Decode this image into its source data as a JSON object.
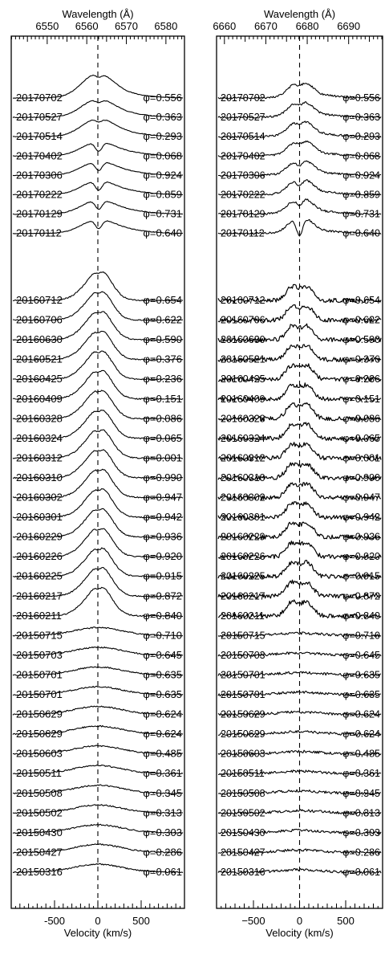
{
  "figure": {
    "phi_symbol": "φ",
    "colors": {
      "ink": "#000000",
      "background": "#ffffff"
    }
  },
  "chart_data": [
    {
      "type": "line",
      "title": "",
      "top_axis_label": "Wavelength (Å)",
      "top_ticks": [
        "6550",
        "6560",
        "6570",
        "6580"
      ],
      "top_tick_values": [
        6550,
        6560,
        6570,
        6580
      ],
      "rest_wavelength": 6562.8,
      "xlabel": "Velocity (km/s)",
      "bottom_ticks": [
        "-500",
        "0",
        "500"
      ],
      "bottom_tick_values": [
        -500,
        0,
        500
      ],
      "xlim": [
        -1000,
        1000
      ],
      "zero_line_dashed": true,
      "group1": [
        {
          "date": "20170702",
          "phase": "0.556"
        },
        {
          "date": "20170527",
          "phase": "0.363"
        },
        {
          "date": "20170514",
          "phase": "0.293"
        },
        {
          "date": "20170402",
          "phase": "0.068"
        },
        {
          "date": "20170306",
          "phase": "0.924"
        },
        {
          "date": "20170222",
          "phase": "0.859"
        },
        {
          "date": "20170129",
          "phase": "0.731"
        },
        {
          "date": "20170112",
          "phase": "0.640"
        }
      ],
      "group2": [
        {
          "date": "20160712",
          "phase": "0.654"
        },
        {
          "date": "20160706",
          "phase": "0.622"
        },
        {
          "date": "20160630",
          "phase": "0.590"
        },
        {
          "date": "20160521",
          "phase": "0.376"
        },
        {
          "date": "20160425",
          "phase": "0.236"
        },
        {
          "date": "20160409",
          "phase": "0.151"
        },
        {
          "date": "20160328",
          "phase": "0.086"
        },
        {
          "date": "20160324",
          "phase": "0.065"
        },
        {
          "date": "20160312",
          "phase": "0.001"
        },
        {
          "date": "20160310",
          "phase": "0.990"
        },
        {
          "date": "20160302",
          "phase": "0.947"
        },
        {
          "date": "20160301",
          "phase": "0.942"
        },
        {
          "date": "20160229",
          "phase": "0.936"
        },
        {
          "date": "20160226",
          "phase": "0.920"
        },
        {
          "date": "20160225",
          "phase": "0.915"
        },
        {
          "date": "20160217",
          "phase": "0.872"
        },
        {
          "date": "20160211",
          "phase": "0.840"
        },
        {
          "date": "20150715",
          "phase": "0.710"
        },
        {
          "date": "20150703",
          "phase": "0.645"
        },
        {
          "date": "20150701",
          "phase": "0.635"
        },
        {
          "date": "20150701",
          "phase": "0.635"
        },
        {
          "date": "20150629",
          "phase": "0.624"
        },
        {
          "date": "20150629",
          "phase": "0.624"
        },
        {
          "date": "20150603",
          "phase": "0.485"
        },
        {
          "date": "20150511",
          "phase": "0.361"
        },
        {
          "date": "20150508",
          "phase": "0.345"
        },
        {
          "date": "20150502",
          "phase": "0.313"
        },
        {
          "date": "20150430",
          "phase": "0.303"
        },
        {
          "date": "20150427",
          "phase": "0.286"
        },
        {
          "date": "20150316",
          "phase": "0.061"
        }
      ]
    },
    {
      "type": "line",
      "title": "",
      "top_axis_label": "Wavelength (Å)",
      "top_ticks": [
        "6660",
        "6670",
        "6680",
        "6690"
      ],
      "top_tick_values": [
        6660,
        6670,
        6680,
        6690
      ],
      "rest_wavelength": 6678.15,
      "xlabel": "Velocity (km/s)",
      "bottom_ticks": [
        "−500",
        "0",
        "500"
      ],
      "bottom_tick_values": [
        -500,
        0,
        500
      ],
      "xlim": [
        -900,
        900
      ],
      "zero_line_dashed": true,
      "group1": [
        {
          "date": "20170702",
          "phase": "0.556"
        },
        {
          "date": "20170527",
          "phase": "0.363"
        },
        {
          "date": "20170514",
          "phase": "0.293"
        },
        {
          "date": "20170402",
          "phase": "0.068"
        },
        {
          "date": "20170306",
          "phase": "0.924"
        },
        {
          "date": "20170222",
          "phase": "0.859"
        },
        {
          "date": "20170129",
          "phase": "0.731"
        },
        {
          "date": "20170112",
          "phase": "0.640"
        }
      ],
      "group2": [
        {
          "date": "20160712",
          "phase": "0.654"
        },
        {
          "date": "20160706",
          "phase": "0.622"
        },
        {
          "date": "20160630",
          "phase": "0.590"
        },
        {
          "date": "20160521",
          "phase": "0.376"
        },
        {
          "date": "20160425",
          "phase": "0.236"
        },
        {
          "date": "20160409",
          "phase": "0.151"
        },
        {
          "date": "20160328",
          "phase": "0.086"
        },
        {
          "date": "20160324",
          "phase": "0.065"
        },
        {
          "date": "20160312",
          "phase": "0.001"
        },
        {
          "date": "20160310",
          "phase": "0.990"
        },
        {
          "date": "20160302",
          "phase": "0.947"
        },
        {
          "date": "20160301",
          "phase": "0.942"
        },
        {
          "date": "20160229",
          "phase": "0.936"
        },
        {
          "date": "20160226",
          "phase": "0.920"
        },
        {
          "date": "20160225",
          "phase": "0.915"
        },
        {
          "date": "20160217",
          "phase": "0.872"
        },
        {
          "date": "20160211",
          "phase": "0.840"
        },
        {
          "date": "20150715",
          "phase": "0.710"
        },
        {
          "date": "20150703",
          "phase": "0.645"
        },
        {
          "date": "20150701",
          "phase": "0.635"
        },
        {
          "date": "20150701",
          "phase": "0.635"
        },
        {
          "date": "20150629",
          "phase": "0.624"
        },
        {
          "date": "20150629",
          "phase": "0.624"
        },
        {
          "date": "20150603",
          "phase": "0.485"
        },
        {
          "date": "20150511",
          "phase": "0.361"
        },
        {
          "date": "20150508",
          "phase": "0.345"
        },
        {
          "date": "20150502",
          "phase": "0.313"
        },
        {
          "date": "20150430",
          "phase": "0.303"
        },
        {
          "date": "20150427",
          "phase": "0.286"
        },
        {
          "date": "20150316",
          "phase": "0.061"
        }
      ]
    }
  ]
}
